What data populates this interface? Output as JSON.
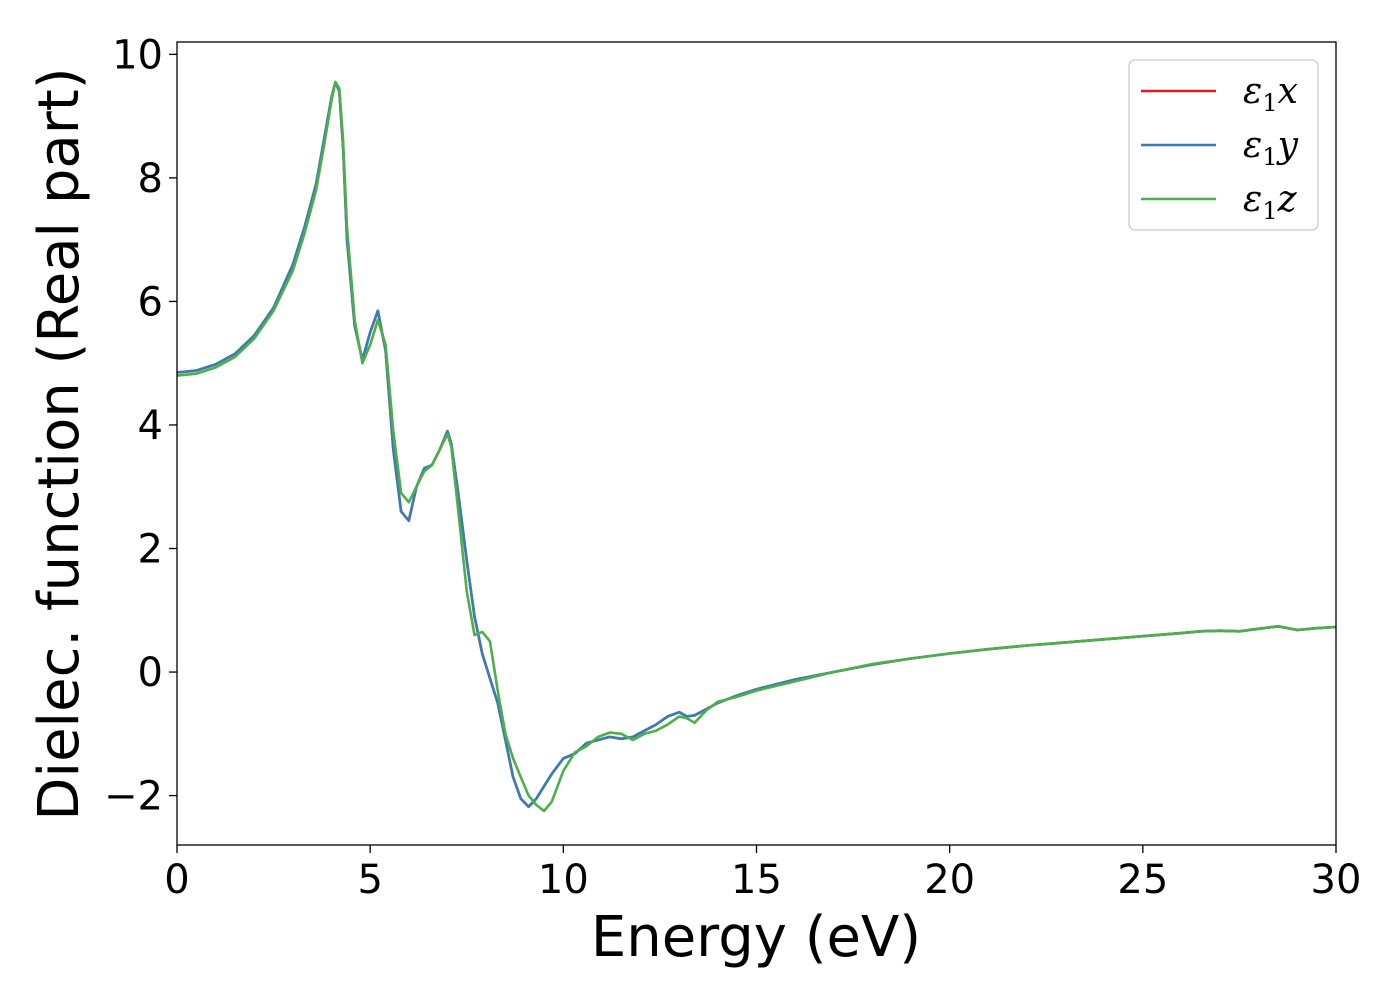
{
  "chart_data": {
    "type": "line",
    "xlabel": "Energy (eV)",
    "ylabel": "Dielec. function (Real part)",
    "xlim": [
      0,
      30
    ],
    "ylim": [
      -2.8,
      10.2
    ],
    "xticks": [
      "0",
      "5",
      "10",
      "15",
      "20",
      "25",
      "30"
    ],
    "yticks": [
      "−2",
      "0",
      "2",
      "4",
      "6",
      "8",
      "10"
    ],
    "legend_placement": "top-right",
    "grid": false,
    "series": [
      {
        "name": "ε1x",
        "legend_symbol": "ε",
        "legend_sub": "1",
        "legend_var": "x",
        "color": "#e41a1c",
        "x": [
          0,
          0.5,
          1,
          1.5,
          2,
          2.5,
          3,
          3.3,
          3.6,
          3.8,
          4,
          4.1,
          4.2,
          4.3,
          4.4,
          4.6,
          4.8,
          5,
          5.2,
          5.4,
          5.6,
          5.8,
          6,
          6.2,
          6.4,
          6.6,
          6.8,
          7,
          7.1,
          7.3,
          7.5,
          7.7,
          7.9,
          8.1,
          8.3,
          8.5,
          8.7,
          8.9,
          9.1,
          9.3,
          9.5,
          9.7,
          10,
          10.3,
          10.6,
          10.9,
          11.2,
          11.5,
          11.8,
          12.1,
          12.4,
          12.7,
          13,
          13.2,
          13.4,
          13.7,
          14,
          14.5,
          15,
          16,
          17,
          18,
          19,
          20,
          21,
          22,
          23,
          24,
          25,
          26,
          26.5,
          27,
          27.5,
          28,
          28.5,
          29,
          29.5,
          30
        ],
        "y": [
          4.85,
          4.88,
          4.98,
          5.15,
          5.45,
          5.9,
          6.6,
          7.2,
          7.9,
          8.6,
          9.3,
          9.55,
          9.4,
          8.5,
          7.0,
          5.6,
          5.05,
          5.5,
          5.85,
          5.2,
          3.6,
          2.6,
          2.45,
          3.0,
          3.3,
          3.35,
          3.6,
          3.9,
          3.7,
          2.8,
          1.8,
          0.9,
          0.3,
          -0.1,
          -0.5,
          -1.1,
          -1.7,
          -2.05,
          -2.18,
          -2.05,
          -1.85,
          -1.65,
          -1.4,
          -1.32,
          -1.15,
          -1.1,
          -1.05,
          -1.08,
          -1.05,
          -0.95,
          -0.85,
          -0.72,
          -0.65,
          -0.72,
          -0.7,
          -0.6,
          -0.5,
          -0.38,
          -0.28,
          -0.12,
          0.0,
          0.12,
          0.22,
          0.3,
          0.37,
          0.43,
          0.48,
          0.53,
          0.58,
          0.63,
          0.66,
          0.67,
          0.66,
          0.7,
          0.74,
          0.68,
          0.71,
          0.73
        ]
      },
      {
        "name": "ε1y",
        "legend_symbol": "ε",
        "legend_sub": "1",
        "legend_var": "y",
        "color": "#377eb8",
        "x": [
          0,
          0.5,
          1,
          1.5,
          2,
          2.5,
          3,
          3.3,
          3.6,
          3.8,
          4,
          4.1,
          4.2,
          4.3,
          4.4,
          4.6,
          4.8,
          5,
          5.2,
          5.4,
          5.6,
          5.8,
          6,
          6.2,
          6.4,
          6.6,
          6.8,
          7,
          7.1,
          7.3,
          7.5,
          7.7,
          7.9,
          8.1,
          8.3,
          8.5,
          8.7,
          8.9,
          9.1,
          9.3,
          9.5,
          9.7,
          10,
          10.3,
          10.6,
          10.9,
          11.2,
          11.5,
          11.8,
          12.1,
          12.4,
          12.7,
          13,
          13.2,
          13.4,
          13.7,
          14,
          14.5,
          15,
          16,
          17,
          18,
          19,
          20,
          21,
          22,
          23,
          24,
          25,
          26,
          26.5,
          27,
          27.5,
          28,
          28.5,
          29,
          29.5,
          30
        ],
        "y": [
          4.85,
          4.88,
          4.98,
          5.15,
          5.45,
          5.9,
          6.6,
          7.2,
          7.9,
          8.6,
          9.3,
          9.55,
          9.4,
          8.5,
          7.0,
          5.6,
          5.05,
          5.5,
          5.85,
          5.2,
          3.6,
          2.6,
          2.45,
          3.0,
          3.3,
          3.35,
          3.6,
          3.9,
          3.7,
          2.8,
          1.8,
          0.9,
          0.3,
          -0.1,
          -0.5,
          -1.1,
          -1.7,
          -2.05,
          -2.18,
          -2.05,
          -1.85,
          -1.65,
          -1.4,
          -1.32,
          -1.15,
          -1.1,
          -1.05,
          -1.08,
          -1.05,
          -0.95,
          -0.85,
          -0.72,
          -0.65,
          -0.72,
          -0.7,
          -0.6,
          -0.5,
          -0.38,
          -0.28,
          -0.12,
          0.0,
          0.12,
          0.22,
          0.3,
          0.37,
          0.43,
          0.48,
          0.53,
          0.58,
          0.63,
          0.66,
          0.67,
          0.66,
          0.7,
          0.74,
          0.68,
          0.71,
          0.73
        ]
      },
      {
        "name": "ε1z",
        "legend_symbol": "ε",
        "legend_sub": "1",
        "legend_var": "z",
        "color": "#4daf4a",
        "x": [
          0,
          0.5,
          1,
          1.5,
          2,
          2.5,
          3,
          3.3,
          3.6,
          3.8,
          4,
          4.1,
          4.2,
          4.3,
          4.4,
          4.6,
          4.8,
          5,
          5.2,
          5.4,
          5.6,
          5.8,
          6,
          6.2,
          6.4,
          6.6,
          6.8,
          7,
          7.1,
          7.3,
          7.5,
          7.7,
          7.9,
          8.1,
          8.3,
          8.5,
          8.7,
          8.9,
          9.1,
          9.3,
          9.5,
          9.7,
          10,
          10.3,
          10.6,
          10.9,
          11.2,
          11.5,
          11.8,
          12.1,
          12.4,
          12.7,
          13,
          13.2,
          13.4,
          13.7,
          14,
          14.5,
          15,
          16,
          17,
          18,
          19,
          20,
          21,
          22,
          23,
          24,
          25,
          26,
          26.5,
          27,
          27.5,
          28,
          28.5,
          29,
          29.5,
          30
        ],
        "y": [
          4.8,
          4.83,
          4.93,
          5.1,
          5.4,
          5.85,
          6.5,
          7.1,
          7.8,
          8.5,
          9.25,
          9.55,
          9.45,
          8.6,
          7.2,
          5.7,
          5.0,
          5.3,
          5.7,
          5.3,
          3.9,
          2.9,
          2.75,
          3.0,
          3.25,
          3.35,
          3.6,
          3.85,
          3.65,
          2.5,
          1.3,
          0.6,
          0.65,
          0.5,
          -0.3,
          -1.0,
          -1.4,
          -1.7,
          -2.0,
          -2.15,
          -2.25,
          -2.1,
          -1.6,
          -1.3,
          -1.2,
          -1.05,
          -0.98,
          -1.0,
          -1.1,
          -1.0,
          -0.95,
          -0.85,
          -0.72,
          -0.75,
          -0.82,
          -0.62,
          -0.48,
          -0.4,
          -0.3,
          -0.15,
          0.0,
          0.13,
          0.22,
          0.3,
          0.37,
          0.43,
          0.48,
          0.53,
          0.58,
          0.63,
          0.66,
          0.67,
          0.66,
          0.7,
          0.74,
          0.68,
          0.71,
          0.73
        ]
      }
    ]
  }
}
